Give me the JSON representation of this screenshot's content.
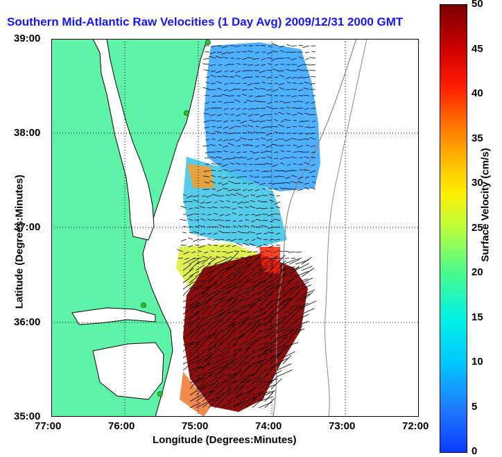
{
  "title": "Southern Mid-Atlantic Raw Velocities (1 Day Avg) 2009/12/31 2000 GMT",
  "x_axis": {
    "label": "Longitude (Degrees:Minutes)",
    "ticks": [
      "77:00",
      "76:00",
      "75:00",
      "74:00",
      "73:00",
      "72:00"
    ]
  },
  "y_axis": {
    "label": "Latitude (Degrees:Minutes)",
    "ticks": [
      "39:00",
      "38:00",
      "37:00",
      "36:00",
      "35:00"
    ]
  },
  "colorbar": {
    "label": "Surface Velocity (cm/s)",
    "ticks": [
      "0",
      "5",
      "10",
      "15",
      "20",
      "25",
      "30",
      "35",
      "40",
      "45",
      "50"
    ],
    "min": 0,
    "max": 50
  },
  "colors": {
    "land": "#5ef4a8",
    "title": "#1515ff",
    "station": "#22cc22"
  }
}
